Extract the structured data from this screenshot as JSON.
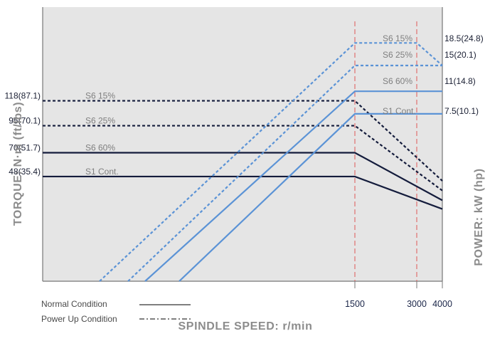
{
  "chart_data": {
    "type": "line",
    "xlabel": "SPINDLE SPEED: r/min",
    "ylabel_left": "TORQUE: N·m (ft/lbs)",
    "ylabel_right": "POWER: kW (hp)",
    "x_ticks": [
      "1500",
      "3000",
      "4000"
    ],
    "torque_labels": [
      "118(87.1)",
      "95(70.1)",
      "70(51.7)",
      "48(35.4)"
    ],
    "torque_conditions": [
      "S6 15%",
      "S6 25%",
      "S6 60%",
      "S1 Cont."
    ],
    "power_labels": [
      "18.5(24.8)",
      "15(20.1)",
      "11(14.8)",
      "7.5(10.1)"
    ],
    "power_conditions": [
      "S6 15%",
      "S6 25%",
      "S6 60%",
      "S1 Cont."
    ],
    "torque_series": [
      {
        "condition": "S6 15%",
        "style": "power-up",
        "points": [
          [
            0,
            118
          ],
          [
            1500,
            118
          ],
          [
            4000,
            44
          ]
        ]
      },
      {
        "condition": "S6 25%",
        "style": "power-up",
        "points": [
          [
            0,
            95
          ],
          [
            1500,
            95
          ],
          [
            4000,
            35
          ]
        ]
      },
      {
        "condition": "S6 60%",
        "style": "normal",
        "points": [
          [
            0,
            70
          ],
          [
            1500,
            70
          ],
          [
            4000,
            26
          ]
        ]
      },
      {
        "condition": "S1 Cont.",
        "style": "normal",
        "points": [
          [
            0,
            48
          ],
          [
            1500,
            48
          ],
          [
            4000,
            18
          ]
        ]
      }
    ],
    "power_series": [
      {
        "condition": "S6 15%",
        "style": "power-up",
        "points": [
          [
            0,
            0
          ],
          [
            1500,
            18.5
          ],
          [
            3000,
            18.5
          ],
          [
            4000,
            15
          ]
        ]
      },
      {
        "condition": "S6 25%",
        "style": "power-up",
        "points": [
          [
            0,
            0
          ],
          [
            1500,
            15
          ],
          [
            4000,
            15
          ]
        ]
      },
      {
        "condition": "S6 60%",
        "style": "normal",
        "points": [
          [
            0,
            0
          ],
          [
            1500,
            11
          ],
          [
            4000,
            11
          ]
        ]
      },
      {
        "condition": "S1 Cont.",
        "style": "normal",
        "points": [
          [
            0,
            0
          ],
          [
            1500,
            7.5
          ],
          [
            4000,
            7.5
          ]
        ]
      }
    ],
    "legend": [
      {
        "label": "Normal Condition",
        "style": "solid"
      },
      {
        "label": "Power Up Condition",
        "style": "dash-dot"
      }
    ],
    "grid": false,
    "reference_lines_x": [
      1500,
      3000
    ],
    "colors": {
      "torque": "#141c3c",
      "power": "#5b93d6",
      "reference": "#e0706e",
      "plot_bg": "#e5e5e5",
      "axis": "#777777"
    }
  }
}
